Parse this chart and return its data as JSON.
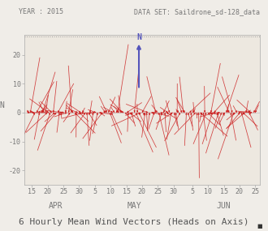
{
  "title": "6 Hourly Mean Wind Vectors (Heads on Axis)",
  "year_label": "YEAR : 2015",
  "dataset_label": "DATA SET: Saildrone_sd-128_data",
  "ylabel": "N",
  "ylim": [
    -25,
    27
  ],
  "yticks": [
    -20,
    -10,
    0,
    10,
    20
  ],
  "background_color": "#f0ede8",
  "plot_bg_color": "#ede8e0",
  "vector_color": "#cc2222",
  "north_arrow_color": "#5555bb",
  "north_label_color": "#5555bb",
  "font_color": "#777777",
  "dotted_line_color": "#999999",
  "title_fontsize": 8,
  "header_fontsize": 6,
  "tick_fontsize": 6,
  "month_fontsize": 7,
  "ylabel_fontsize": 7,
  "north_x_day": 19,
  "north_x_month": "MAY",
  "north_y_base": 8.0,
  "north_y_top": 24.5,
  "seed": 42,
  "n_vectors": 150,
  "xlim": [
    12.5,
    87.5
  ],
  "apr_start_day": 13,
  "apr_end_day": 30,
  "may_start_day": 31,
  "may_end_day": 61,
  "jun_start_day": 62,
  "jun_end_day": 86
}
